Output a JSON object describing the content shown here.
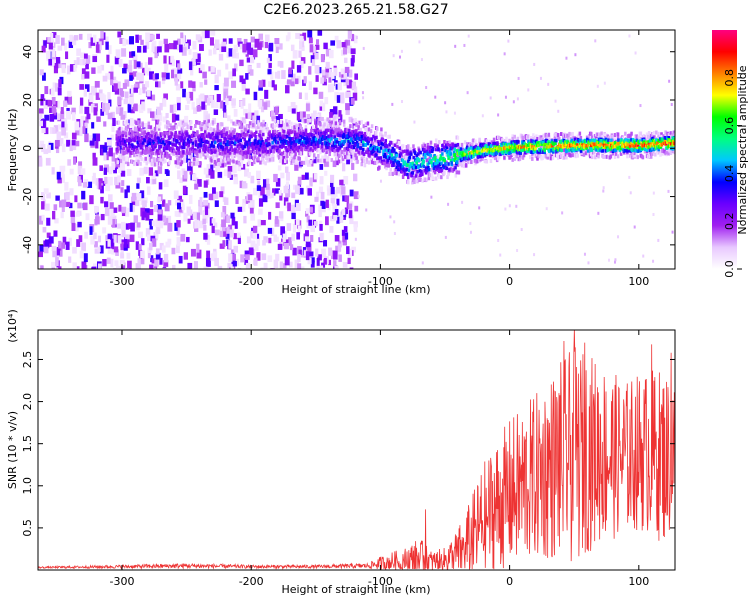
{
  "title": "C2E6.2023.265.21.58.G27",
  "chart_data": [
    {
      "type": "heatmap",
      "title": "C2E6.2023.265.21.58.G27",
      "xlabel": "Height of straight line (km)",
      "ylabel": "Frequency (Hz)",
      "xlim": [
        -365,
        128
      ],
      "ylim": [
        -50,
        49
      ],
      "xticks": [
        -300,
        -200,
        -100,
        0,
        100
      ],
      "yticks": [
        -40,
        -20,
        0,
        20,
        40
      ],
      "colorbar": {
        "label": "Normalized spectral amplitude",
        "range": [
          0,
          1
        ],
        "ticks": [
          "0.0",
          "0.2",
          "0.4",
          "0.6",
          "0.8"
        ],
        "colors": [
          "#ffffff",
          "#e8c8ff",
          "#a020f0",
          "#6a00ff",
          "#0000ff",
          "#00c8ff",
          "#00ff80",
          "#00ff00",
          "#ffff00",
          "#ff8000",
          "#ff0000",
          "#ff0080"
        ]
      },
      "ridge": [
        {
          "x": -305,
          "freq": 3,
          "amp": 0.3
        },
        {
          "x": -250,
          "freq": 3,
          "amp": 0.35
        },
        {
          "x": -200,
          "freq": 3,
          "amp": 0.35
        },
        {
          "x": -150,
          "freq": 4,
          "amp": 0.4
        },
        {
          "x": -120,
          "freq": 4,
          "amp": 0.45
        },
        {
          "x": -100,
          "freq": 0,
          "amp": 0.45
        },
        {
          "x": -80,
          "freq": -6,
          "amp": 0.5
        },
        {
          "x": -60,
          "freq": -4,
          "amp": 0.55
        },
        {
          "x": -45,
          "freq": -3,
          "amp": 0.6
        },
        {
          "x": -40,
          "freq": -2,
          "amp": 0.7
        },
        {
          "x": -20,
          "freq": 0,
          "amp": 0.75
        },
        {
          "x": 0,
          "freq": 1,
          "amp": 0.8
        },
        {
          "x": 50,
          "freq": 2,
          "amp": 0.85
        },
        {
          "x": 100,
          "freq": 2,
          "amp": 0.9
        },
        {
          "x": 128,
          "freq": 3,
          "amp": 0.9
        }
      ],
      "noise_region": {
        "x_from": -365,
        "x_to": -120,
        "freq_range": [
          -50,
          49
        ]
      }
    },
    {
      "type": "line",
      "xlabel": "Height of straight line (km)",
      "ylabel": "SNR (10 * v/v)",
      "y_multiplier": "(x10⁴)",
      "xlim": [
        -365,
        128
      ],
      "ylim": [
        0,
        2.85
      ],
      "xticks": [
        -300,
        -200,
        -100,
        0,
        100
      ],
      "yticks": [
        0.5,
        1.0,
        1.5,
        2.0,
        2.5
      ],
      "ytick_labels": [
        "0.5",
        "1.0",
        "1.5",
        "2.0",
        "2.5"
      ],
      "color": "#ee3333",
      "series": [
        {
          "x": [
            -365,
            -300,
            -250,
            -200,
            -150,
            -110,
            -100,
            -90,
            -80,
            -70,
            -60,
            -50,
            -40,
            -30,
            -20,
            -10,
            0,
            10,
            20,
            30,
            40,
            50,
            60,
            70,
            80,
            90,
            100,
            110,
            120,
            128
          ],
          "mean": [
            0.03,
            0.04,
            0.05,
            0.04,
            0.04,
            0.05,
            0.08,
            0.1,
            0.12,
            0.14,
            0.1,
            0.12,
            0.2,
            0.35,
            0.6,
            0.75,
            0.9,
            1.0,
            1.1,
            1.2,
            1.3,
            1.35,
            1.4,
            1.4,
            1.35,
            1.35,
            1.4,
            1.4,
            1.35,
            1.4
          ],
          "spread": [
            0.01,
            0.02,
            0.03,
            0.02,
            0.02,
            0.03,
            0.08,
            0.12,
            0.15,
            0.25,
            0.12,
            0.15,
            0.3,
            0.5,
            0.7,
            0.8,
            0.9,
            0.95,
            1.0,
            1.1,
            1.2,
            1.3,
            1.2,
            1.1,
            1.0,
            0.9,
            0.95,
            1.0,
            1.05,
            0.9
          ],
          "peaks": [
            {
              "x": -65,
              "y": 0.72
            },
            {
              "x": 42,
              "y": 2.72
            },
            {
              "x": 50,
              "y": 2.86
            },
            {
              "x": 58,
              "y": 2.7
            },
            {
              "x": 110,
              "y": 2.68
            },
            {
              "x": 125,
              "y": 2.58
            }
          ]
        }
      ]
    }
  ]
}
